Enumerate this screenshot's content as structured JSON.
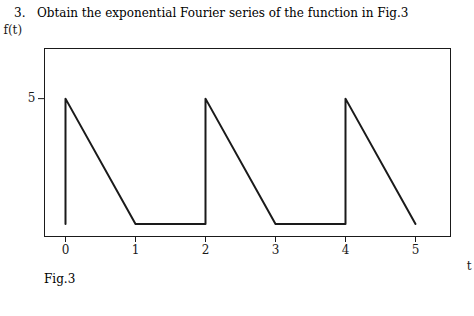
{
  "chart_data": {
    "type": "line",
    "title": "3.   Obtain the exponential Fourier series of the function in Fig.3",
    "annotations": [
      "Fig.3"
    ],
    "x_label": "t",
    "y_label": "f(t)",
    "x": [
      0,
      0,
      1,
      2,
      2,
      3,
      4,
      4,
      5
    ],
    "values": [
      0,
      5,
      0,
      0,
      5,
      0,
      0,
      5,
      0
    ],
    "color": "#1a1a1a",
    "xlim": [
      -0.3,
      5.5
    ],
    "ylim": [
      -0.5,
      7.0
    ],
    "xticks": [
      0,
      1,
      2,
      3,
      4,
      5
    ],
    "yticks": [
      5
    ],
    "grid": false
  }
}
